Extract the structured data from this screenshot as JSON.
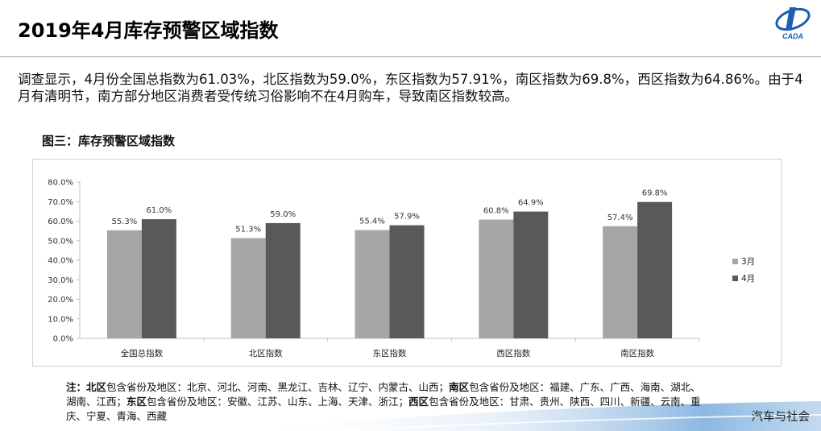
{
  "header": {
    "title": "2019年4月库存预警区域指数",
    "logo_text": "CADA"
  },
  "summary": "调查显示，4月份全国总指数为61.03%，北区指数为59.0%，东区指数为57.91%，南区指数为69.8%，西区指数为64.86%。由于4月有清明节，南方部分地区消费者受传统习俗影响不在4月购车，导致南区指数较高。",
  "figure_title": "图三：库存预警区域指数",
  "chart_data": {
    "type": "bar",
    "categories": [
      "全国总指数",
      "北区指数",
      "东区指数",
      "西区指数",
      "南区指数"
    ],
    "series": [
      {
        "name": "3月",
        "values": [
          55.3,
          51.3,
          55.4,
          60.8,
          57.4
        ],
        "labels": [
          "55.3%",
          "51.3%",
          "55.4%",
          "60.8%",
          "57.4%"
        ],
        "color": "#a6a6a6"
      },
      {
        "name": "4月",
        "values": [
          61.0,
          59.0,
          57.9,
          64.9,
          69.8
        ],
        "labels": [
          "61.0%",
          "59.0%",
          "57.9%",
          "64.9%",
          "69.8%"
        ],
        "color": "#595959"
      }
    ],
    "yticks": [
      "0.0%",
      "10.0%",
      "20.0%",
      "30.0%",
      "40.0%",
      "50.0%",
      "60.0%",
      "70.0%",
      "80.0%"
    ],
    "ylim": [
      0,
      80
    ],
    "legend_position": "right",
    "grid": false
  },
  "note": {
    "prefix": "注：",
    "north_label": "北区",
    "north_text": "包含省份及地区：北京、河北、河南、黑龙江、吉林、辽宁、内蒙古、山西；",
    "south_label": "南区",
    "south_text": "包含省份及地区：福建、广东、广西、海南、湖北、湖南、江西；",
    "east_label": "东区",
    "east_text": "包含省份及地区：安徽、江苏、山东、上海、天津、浙江；",
    "west_label": "西区",
    "west_text": "包含省份及地区：甘肃、贵州、陕西、四川、新疆、云南、重庆、宁夏、青海、西藏"
  },
  "footer": {
    "brand": "汽车与社会"
  }
}
